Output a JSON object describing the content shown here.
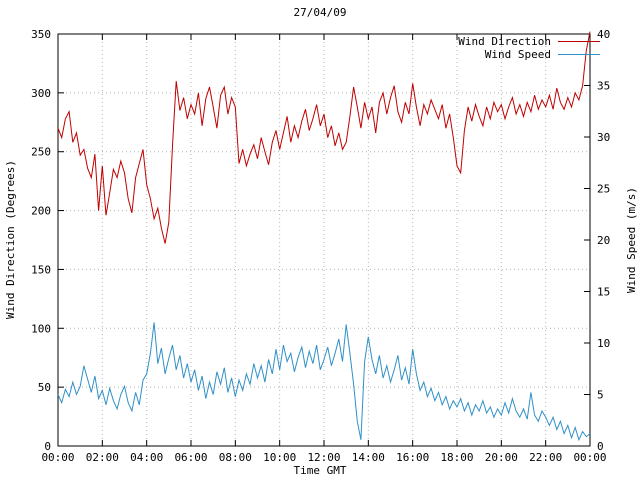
{
  "title": "27/04/09",
  "colors": {
    "wind_direction": "#c00000",
    "wind_speed": "#3090c7",
    "grid": "#b4b4b4",
    "axis": "#000000",
    "background": "#ffffff"
  },
  "chart_data": {
    "type": "line",
    "title": "27/04/09",
    "xlabel": "Time GMT",
    "ylabel_left": "Wind Direction (Degrees)",
    "ylabel_right": "Wind Speed (m/s)",
    "grid": true,
    "legend_position": "top-right-inside",
    "x_tick_labels": [
      "00:00",
      "02:00",
      "04:00",
      "06:00",
      "08:00",
      "10:00",
      "12:00",
      "14:00",
      "16:00",
      "18:00",
      "20:00",
      "22:00",
      "00:00"
    ],
    "x_range_minutes": [
      0,
      1440
    ],
    "x_step_minutes": 10,
    "ylim_left": [
      0,
      350
    ],
    "yticks_left": [
      0,
      50,
      100,
      150,
      200,
      250,
      300,
      350
    ],
    "ylim_right": [
      0,
      40
    ],
    "yticks_right": [
      0,
      5,
      10,
      15,
      20,
      25,
      30,
      35,
      40
    ],
    "series": [
      {
        "name": "Wind Direction",
        "axis": "left",
        "color": "#c00000",
        "values": [
          270,
          262,
          278,
          284,
          258,
          266,
          247,
          252,
          236,
          228,
          248,
          200,
          238,
          196,
          215,
          235,
          228,
          242,
          232,
          210,
          198,
          228,
          240,
          252,
          222,
          210,
          193,
          202,
          185,
          172,
          190,
          255,
          310,
          285,
          296,
          278,
          290,
          282,
          300,
          272,
          295,
          305,
          288,
          270,
          298,
          305,
          282,
          296,
          288,
          240,
          252,
          238,
          248,
          256,
          244,
          262,
          250,
          239,
          258,
          268,
          252,
          266,
          280,
          258,
          272,
          262,
          276,
          286,
          268,
          278,
          290,
          272,
          282,
          262,
          272,
          255,
          266,
          252,
          258,
          280,
          305,
          288,
          270,
          292,
          278,
          288,
          266,
          292,
          300,
          282,
          296,
          306,
          284,
          275,
          292,
          282,
          308,
          288,
          272,
          290,
          282,
          294,
          286,
          278,
          290,
          270,
          282,
          262,
          238,
          232,
          268,
          288,
          276,
          290,
          280,
          272,
          288,
          278,
          292,
          284,
          290,
          278,
          288,
          296,
          282,
          290,
          280,
          292,
          284,
          298,
          286,
          294,
          288,
          298,
          286,
          304,
          292,
          286,
          296,
          288,
          300,
          294,
          306,
          336,
          352
        ]
      },
      {
        "name": "Wind Speed",
        "axis": "right",
        "color": "#3090c7",
        "values": [
          5.0,
          4.2,
          5.5,
          4.8,
          6.2,
          5.0,
          5.8,
          7.8,
          6.5,
          5.2,
          6.8,
          4.6,
          5.4,
          4.0,
          5.6,
          4.4,
          3.6,
          5.0,
          5.8,
          4.2,
          3.4,
          5.2,
          4.0,
          6.4,
          7.0,
          9.0,
          12.0,
          8.0,
          9.5,
          7.0,
          8.5,
          9.8,
          7.4,
          8.8,
          6.6,
          8.0,
          6.2,
          7.4,
          5.4,
          6.8,
          4.6,
          6.2,
          5.0,
          7.2,
          6.0,
          7.6,
          5.2,
          6.6,
          4.8,
          6.4,
          5.4,
          7.0,
          6.0,
          8.0,
          6.6,
          7.8,
          6.2,
          8.4,
          7.0,
          9.4,
          7.4,
          9.8,
          8.2,
          9.0,
          7.2,
          8.6,
          9.6,
          7.6,
          9.2,
          8.0,
          9.8,
          7.4,
          8.4,
          9.6,
          7.8,
          9.0,
          10.4,
          8.2,
          11.8,
          9.0,
          6.0,
          2.4,
          0.6,
          8.2,
          10.6,
          8.4,
          7.0,
          8.8,
          6.6,
          7.8,
          6.2,
          7.4,
          8.8,
          6.4,
          7.6,
          6.0,
          9.4,
          7.0,
          5.4,
          6.2,
          4.8,
          5.6,
          4.4,
          5.2,
          4.0,
          4.8,
          3.6,
          4.4,
          3.8,
          4.6,
          3.4,
          4.2,
          3.0,
          4.0,
          3.4,
          4.4,
          3.2,
          3.8,
          2.8,
          3.6,
          3.0,
          4.2,
          3.2,
          4.6,
          3.4,
          2.8,
          3.6,
          2.6,
          5.2,
          3.0,
          2.4,
          3.4,
          2.8,
          2.0,
          2.8,
          1.6,
          2.4,
          1.2,
          2.0,
          0.8,
          1.8,
          0.6,
          1.4,
          0.9,
          1.2
        ]
      }
    ]
  }
}
